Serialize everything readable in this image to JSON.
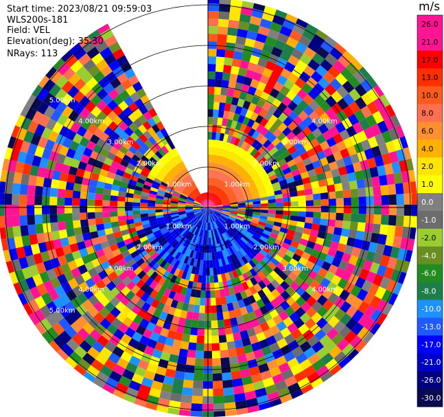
{
  "header": {
    "start_time": "Start time: 2023/08/21 09:59:03",
    "instrument": "WLS200s-181",
    "field": "Field: VEL",
    "elevation": "Elevation(deg): 35.30",
    "nrays": "NRays: 113"
  },
  "colorbar": {
    "unit": "m/s",
    "ticks": [
      "26.0",
      "21.0",
      "17.0",
      "13.0",
      "10.0",
      "8.0",
      "6.0",
      "4.0",
      "2.0",
      "1.0",
      "0.0",
      "-1.0",
      "-2.0",
      "-4.0",
      "-6.0",
      "-8.0",
      "-10.0",
      "-13.0",
      "-17.0",
      "-21.0",
      "-26.0",
      "-30.0"
    ],
    "colors": [
      "#ff1493",
      "#ff1493",
      "#ff0000",
      "#ff3000",
      "#ff5a1e",
      "#ff7050",
      "#ff9030",
      "#ffb000",
      "#ffe600",
      "#ffff00",
      "#808080",
      "#6c6c6c",
      "#9acd32",
      "#6b8e23",
      "#228b22",
      "#1e7e4a",
      "#1e90ff",
      "#1e5aff",
      "#0000ff",
      "#0000cd",
      "#000080",
      "#0a0a50"
    ]
  },
  "chart_data": {
    "type": "polar_ppi",
    "title": "",
    "field": "VEL",
    "unit": "m/s",
    "elevation_deg": 35.3,
    "n_rays": 113,
    "missing_sector_deg": [
      330,
      360
    ],
    "range_ring_labels_upper_left": [
      "1.00km",
      "2.00km",
      "3.00km",
      "4.00km",
      "5.00km"
    ],
    "range_ring_labels_upper_right": [
      "1.00km",
      "2.00km",
      "3.00km",
      "4.00km"
    ],
    "range_ring_labels_lower_left": [
      "1.00km",
      "2.00km",
      "3.00km",
      "4.00km",
      "5.00km"
    ],
    "range_ring_labels_lower_right": [
      "1.00km",
      "2.00km",
      "3.00km",
      "4.00km"
    ],
    "range_rings_km": [
      1,
      2,
      3,
      4,
      5
    ],
    "near_field_pattern": {
      "positive_sector_deg": [
        300,
        80
      ],
      "negative_sector_deg": [
        110,
        260
      ]
    },
    "colorbar_range": [
      -30.0,
      26.0
    ]
  }
}
